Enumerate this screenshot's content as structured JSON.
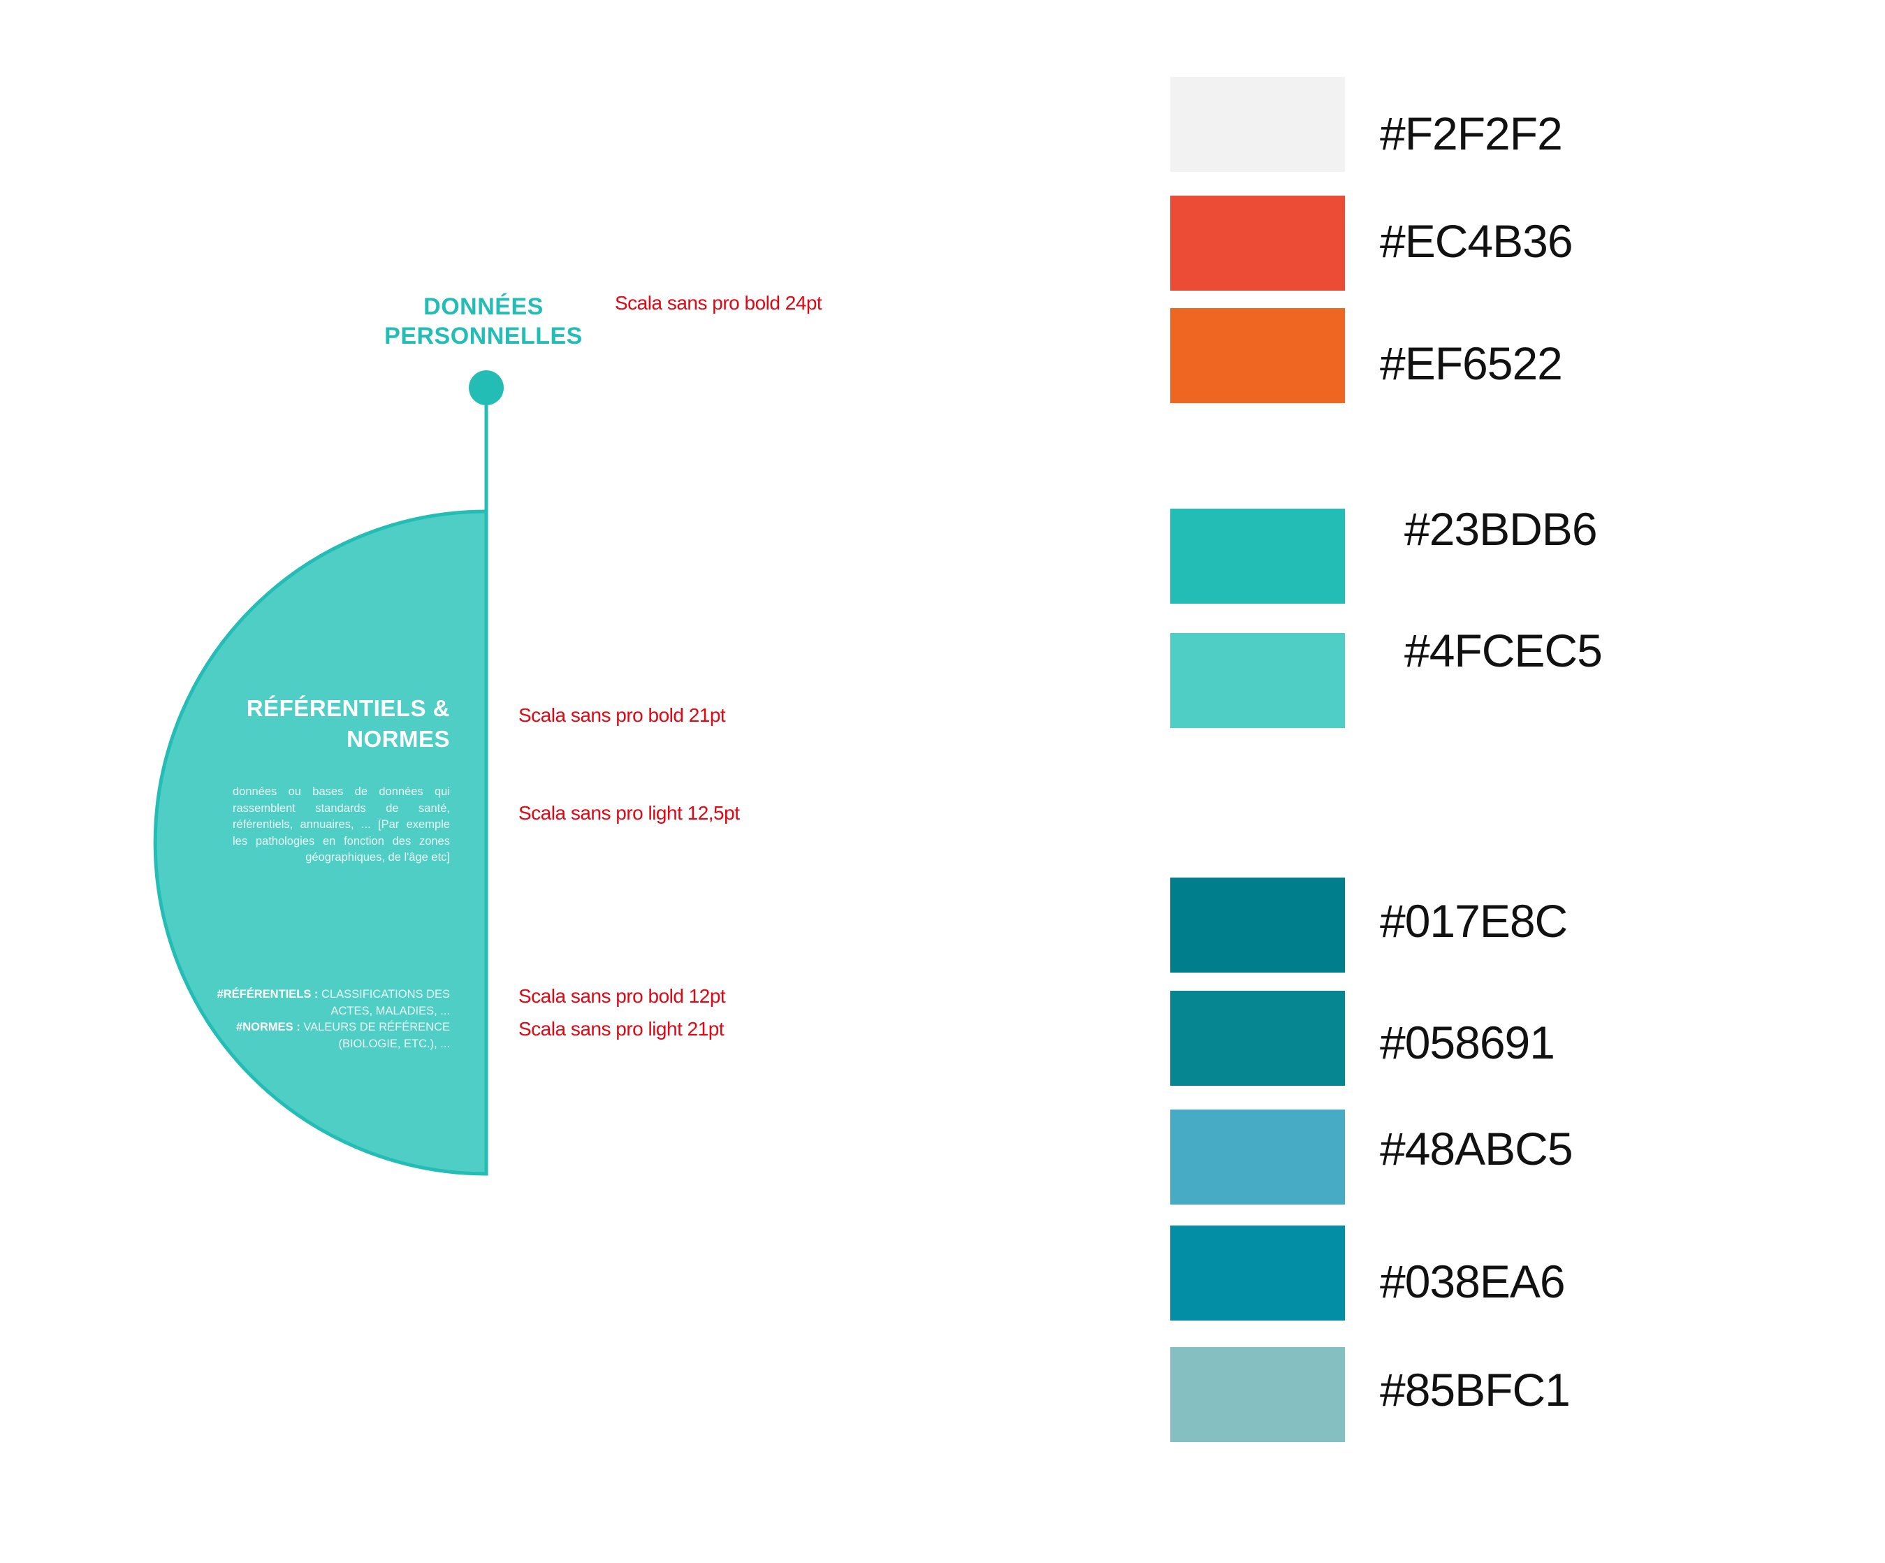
{
  "top_title": {
    "line1": "DONNÉES",
    "line2": "PERSONNELLES"
  },
  "semicircle": {
    "title_line1": "RÉFÉRENTIELS &",
    "title_line2": "NORMES",
    "description": "données ou bases de données qui rassemblent standards de santé, référentiels, annuaires, ... [Par exemple les pathologies en fonction des zones géographiques, de l'âge etc]",
    "note1_label": "#RÉFÉRENTIELS :",
    "note1_text": "CLASSIFICATIONS DES ACTES, MALADIES, ...",
    "note2_label": "#NORMES :",
    "note2_text": "VALEURS DE RÉFÉRENCE (BIOLOGIE, ETC.), ..."
  },
  "annotations": [
    "Scala sans pro bold  24pt",
    "Scala sans pro bold  21pt",
    "Scala sans pro light 12,5pt",
    "Scala sans pro bold  12pt",
    "Scala sans pro light  21pt"
  ],
  "palette": [
    {
      "color": "#F2F2F2",
      "label": "#F2F2F2"
    },
    {
      "color": "#EC4B36",
      "label": "#EC4B36"
    },
    {
      "color": "#EF6522",
      "label": "#EF6522"
    },
    {
      "color": "#23BDB6",
      "label": "#23BDB6"
    },
    {
      "color": "#4FCEC5",
      "label": "#4FCEC5"
    },
    {
      "color": "#017E8C",
      "label": "#017E8C"
    },
    {
      "color": "#058691",
      "label": "#058691"
    },
    {
      "color": "#48ABC5",
      "label": "#48ABC5"
    },
    {
      "color": "#038EA6",
      "label": "#038EA6"
    },
    {
      "color": "#85BFC1",
      "label": "#85BFC1"
    }
  ],
  "colors": {
    "accent": "#23BDB6",
    "fill": "#4FCEC5",
    "annotation": "#e30613"
  }
}
